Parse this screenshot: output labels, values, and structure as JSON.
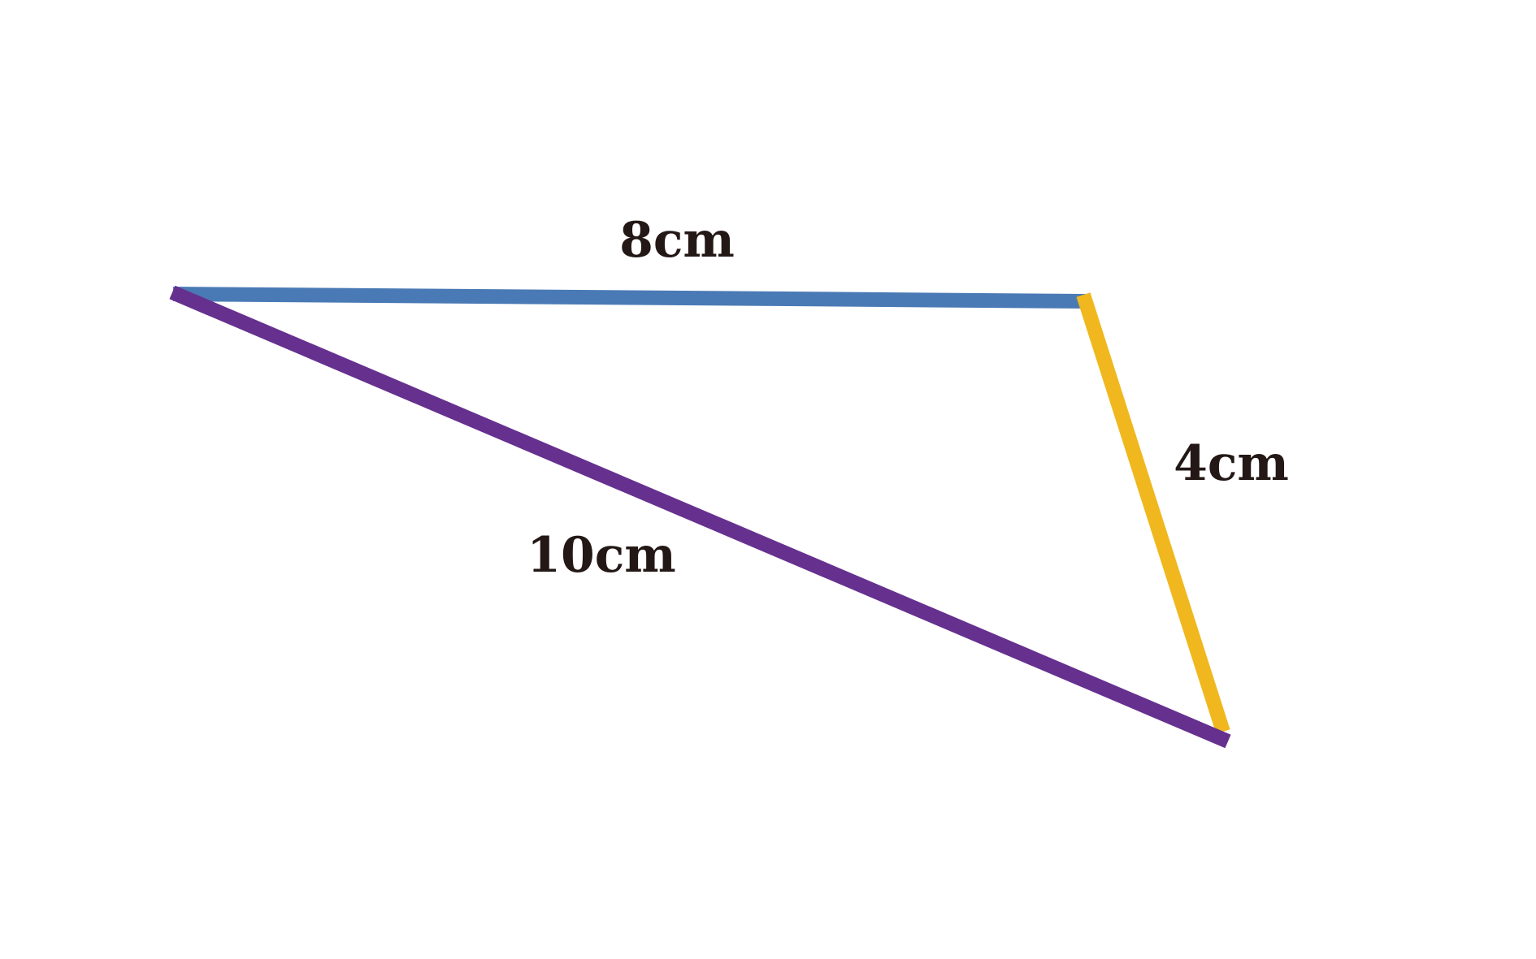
{
  "diagram": {
    "edges": [
      {
        "id": "top",
        "label": "8cm",
        "color": "#4a7ab5"
      },
      {
        "id": "right",
        "label": "4cm",
        "color": "#f0b81e"
      },
      {
        "id": "diagonal",
        "label": "10cm",
        "color": "#66308f"
      }
    ],
    "background": "#ffffff",
    "label_color": "#231815"
  }
}
